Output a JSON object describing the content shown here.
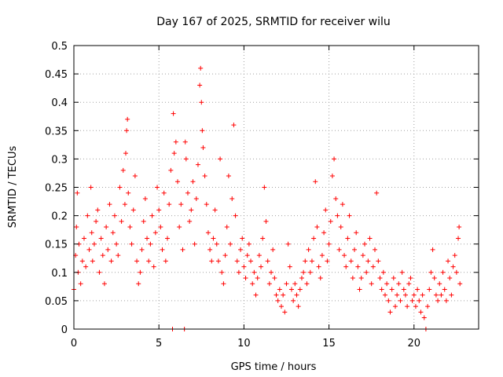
{
  "chart_data": {
    "type": "scatter",
    "title": "Day 167 of 2025, SRMTID for receiver wilu",
    "xlabel": "GPS time / hours",
    "ylabel": "SRMTID / TECUs",
    "xlim": [
      0,
      23.8
    ],
    "ylim": [
      0,
      0.5
    ],
    "xticks": [
      0,
      5,
      10,
      15,
      20
    ],
    "xtick_labels": [
      "0",
      "5",
      "10",
      "15",
      "20"
    ],
    "yticks": [
      0,
      0.05,
      0.1,
      0.15,
      0.2,
      0.25,
      0.3,
      0.35,
      0.4,
      0.45,
      0.5
    ],
    "ytick_labels": [
      "0",
      "0.05",
      "0.1",
      "0.15",
      "0.2",
      "0.25",
      "0.3",
      "0.35",
      "0.4",
      "0.45",
      "0.5"
    ],
    "grid": true,
    "marker": "+",
    "marker_color": "#ff0000",
    "series": [
      {
        "name": "SRMTID",
        "points": [
          [
            0.0,
            0.07
          ],
          [
            0.1,
            0.13
          ],
          [
            0.15,
            0.18
          ],
          [
            0.2,
            0.24
          ],
          [
            0.25,
            0.1
          ],
          [
            0.3,
            0.15
          ],
          [
            0.4,
            0.08
          ],
          [
            0.5,
            0.12
          ],
          [
            0.6,
            0.16
          ],
          [
            0.7,
            0.11
          ],
          [
            0.8,
            0.2
          ],
          [
            0.9,
            0.14
          ],
          [
            1.0,
            0.25
          ],
          [
            1.05,
            0.17
          ],
          [
            1.1,
            0.12
          ],
          [
            1.2,
            0.15
          ],
          [
            1.3,
            0.19
          ],
          [
            1.4,
            0.21
          ],
          [
            1.5,
            0.1
          ],
          [
            1.6,
            0.16
          ],
          [
            1.7,
            0.13
          ],
          [
            1.8,
            0.08
          ],
          [
            1.9,
            0.18
          ],
          [
            2.0,
            0.14
          ],
          [
            2.1,
            0.22
          ],
          [
            2.2,
            0.12
          ],
          [
            2.3,
            0.17
          ],
          [
            2.4,
            0.2
          ],
          [
            2.5,
            0.15
          ],
          [
            2.6,
            0.13
          ],
          [
            2.7,
            0.25
          ],
          [
            2.8,
            0.19
          ],
          [
            2.9,
            0.28
          ],
          [
            3.0,
            0.22
          ],
          [
            3.05,
            0.31
          ],
          [
            3.1,
            0.35
          ],
          [
            3.15,
            0.37
          ],
          [
            3.2,
            0.24
          ],
          [
            3.3,
            0.18
          ],
          [
            3.4,
            0.15
          ],
          [
            3.5,
            0.21
          ],
          [
            3.6,
            0.27
          ],
          [
            3.7,
            0.12
          ],
          [
            3.8,
            0.08
          ],
          [
            3.9,
            0.1
          ],
          [
            4.0,
            0.14
          ],
          [
            4.1,
            0.19
          ],
          [
            4.2,
            0.23
          ],
          [
            4.3,
            0.16
          ],
          [
            4.4,
            0.12
          ],
          [
            4.5,
            0.15
          ],
          [
            4.6,
            0.2
          ],
          [
            4.7,
            0.11
          ],
          [
            4.8,
            0.17
          ],
          [
            4.9,
            0.25
          ],
          [
            5.0,
            0.21
          ],
          [
            5.1,
            0.18
          ],
          [
            5.2,
            0.14
          ],
          [
            5.3,
            0.24
          ],
          [
            5.4,
            0.12
          ],
          [
            5.5,
            0.16
          ],
          [
            5.6,
            0.22
          ],
          [
            5.7,
            0.28
          ],
          [
            5.8,
            0.0
          ],
          [
            5.85,
            0.38
          ],
          [
            5.9,
            0.31
          ],
          [
            6.0,
            0.33
          ],
          [
            6.1,
            0.26
          ],
          [
            6.2,
            0.18
          ],
          [
            6.3,
            0.22
          ],
          [
            6.4,
            0.14
          ],
          [
            6.5,
            0.0
          ],
          [
            6.55,
            0.33
          ],
          [
            6.6,
            0.3
          ],
          [
            6.7,
            0.24
          ],
          [
            6.8,
            0.19
          ],
          [
            6.9,
            0.21
          ],
          [
            7.0,
            0.26
          ],
          [
            7.1,
            0.15
          ],
          [
            7.2,
            0.23
          ],
          [
            7.3,
            0.29
          ],
          [
            7.4,
            0.43
          ],
          [
            7.45,
            0.46
          ],
          [
            7.5,
            0.4
          ],
          [
            7.55,
            0.35
          ],
          [
            7.6,
            0.32
          ],
          [
            7.7,
            0.27
          ],
          [
            7.8,
            0.22
          ],
          [
            7.9,
            0.17
          ],
          [
            8.0,
            0.14
          ],
          [
            8.1,
            0.12
          ],
          [
            8.2,
            0.16
          ],
          [
            8.3,
            0.21
          ],
          [
            8.4,
            0.15
          ],
          [
            8.5,
            0.12
          ],
          [
            8.6,
            0.3
          ],
          [
            8.7,
            0.1
          ],
          [
            8.8,
            0.08
          ],
          [
            8.9,
            0.13
          ],
          [
            9.0,
            0.18
          ],
          [
            9.1,
            0.27
          ],
          [
            9.2,
            0.15
          ],
          [
            9.3,
            0.23
          ],
          [
            9.4,
            0.36
          ],
          [
            9.5,
            0.2
          ],
          [
            9.6,
            0.12
          ],
          [
            9.7,
            0.1
          ],
          [
            9.8,
            0.14
          ],
          [
            9.9,
            0.16
          ],
          [
            10.0,
            0.11
          ],
          [
            10.1,
            0.09
          ],
          [
            10.2,
            0.13
          ],
          [
            10.3,
            0.15
          ],
          [
            10.4,
            0.12
          ],
          [
            10.5,
            0.08
          ],
          [
            10.6,
            0.1
          ],
          [
            10.7,
            0.06
          ],
          [
            10.8,
            0.09
          ],
          [
            10.9,
            0.13
          ],
          [
            11.0,
            0.11
          ],
          [
            11.1,
            0.16
          ],
          [
            11.2,
            0.25
          ],
          [
            11.3,
            0.19
          ],
          [
            11.4,
            0.12
          ],
          [
            11.5,
            0.08
          ],
          [
            11.6,
            0.1
          ],
          [
            11.7,
            0.14
          ],
          [
            11.8,
            0.09
          ],
          [
            11.9,
            0.06
          ],
          [
            12.0,
            0.05
          ],
          [
            12.1,
            0.07
          ],
          [
            12.2,
            0.04
          ],
          [
            12.3,
            0.06
          ],
          [
            12.4,
            0.03
          ],
          [
            12.5,
            0.08
          ],
          [
            12.6,
            0.15
          ],
          [
            12.7,
            0.11
          ],
          [
            12.8,
            0.07
          ],
          [
            12.9,
            0.05
          ],
          [
            13.0,
            0.08
          ],
          [
            13.1,
            0.06
          ],
          [
            13.2,
            0.04
          ],
          [
            13.3,
            0.07
          ],
          [
            13.4,
            0.09
          ],
          [
            13.5,
            0.1
          ],
          [
            13.6,
            0.12
          ],
          [
            13.7,
            0.08
          ],
          [
            13.8,
            0.14
          ],
          [
            13.9,
            0.1
          ],
          [
            14.0,
            0.12
          ],
          [
            14.1,
            0.16
          ],
          [
            14.2,
            0.26
          ],
          [
            14.3,
            0.18
          ],
          [
            14.4,
            0.11
          ],
          [
            14.5,
            0.09
          ],
          [
            14.6,
            0.13
          ],
          [
            14.7,
            0.17
          ],
          [
            14.8,
            0.21
          ],
          [
            14.9,
            0.12
          ],
          [
            15.0,
            0.15
          ],
          [
            15.1,
            0.19
          ],
          [
            15.2,
            0.27
          ],
          [
            15.3,
            0.3
          ],
          [
            15.4,
            0.23
          ],
          [
            15.5,
            0.2
          ],
          [
            15.6,
            0.14
          ],
          [
            15.7,
            0.18
          ],
          [
            15.8,
            0.22
          ],
          [
            15.9,
            0.13
          ],
          [
            16.0,
            0.11
          ],
          [
            16.1,
            0.16
          ],
          [
            16.2,
            0.2
          ],
          [
            16.3,
            0.12
          ],
          [
            16.4,
            0.09
          ],
          [
            16.5,
            0.14
          ],
          [
            16.6,
            0.17
          ],
          [
            16.7,
            0.11
          ],
          [
            16.8,
            0.07
          ],
          [
            16.9,
            0.09
          ],
          [
            17.0,
            0.13
          ],
          [
            17.1,
            0.15
          ],
          [
            17.2,
            0.1
          ],
          [
            17.3,
            0.12
          ],
          [
            17.4,
            0.16
          ],
          [
            17.5,
            0.08
          ],
          [
            17.6,
            0.11
          ],
          [
            17.7,
            0.14
          ],
          [
            17.8,
            0.24
          ],
          [
            17.9,
            0.12
          ],
          [
            18.0,
            0.09
          ],
          [
            18.1,
            0.07
          ],
          [
            18.2,
            0.1
          ],
          [
            18.3,
            0.06
          ],
          [
            18.4,
            0.08
          ],
          [
            18.5,
            0.05
          ],
          [
            18.6,
            0.03
          ],
          [
            18.7,
            0.07
          ],
          [
            18.8,
            0.09
          ],
          [
            18.9,
            0.04
          ],
          [
            19.0,
            0.06
          ],
          [
            19.1,
            0.08
          ],
          [
            19.2,
            0.05
          ],
          [
            19.3,
            0.1
          ],
          [
            19.4,
            0.07
          ],
          [
            19.5,
            0.06
          ],
          [
            19.6,
            0.04
          ],
          [
            19.7,
            0.08
          ],
          [
            19.8,
            0.09
          ],
          [
            19.9,
            0.05
          ],
          [
            20.0,
            0.06
          ],
          [
            20.1,
            0.04
          ],
          [
            20.2,
            0.07
          ],
          [
            20.3,
            0.05
          ],
          [
            20.4,
            0.03
          ],
          [
            20.5,
            0.06
          ],
          [
            20.6,
            0.02
          ],
          [
            20.7,
            0.0
          ],
          [
            20.8,
            0.04
          ],
          [
            20.9,
            0.07
          ],
          [
            21.0,
            0.1
          ],
          [
            21.1,
            0.14
          ],
          [
            21.2,
            0.09
          ],
          [
            21.3,
            0.06
          ],
          [
            21.4,
            0.05
          ],
          [
            21.5,
            0.08
          ],
          [
            21.6,
            0.06
          ],
          [
            21.7,
            0.1
          ],
          [
            21.8,
            0.07
          ],
          [
            21.9,
            0.05
          ],
          [
            22.0,
            0.12
          ],
          [
            22.1,
            0.09
          ],
          [
            22.2,
            0.06
          ],
          [
            22.3,
            0.11
          ],
          [
            22.4,
            0.13
          ],
          [
            22.5,
            0.1
          ],
          [
            22.6,
            0.16
          ],
          [
            22.65,
            0.18
          ],
          [
            22.7,
            0.08
          ]
        ]
      }
    ]
  }
}
